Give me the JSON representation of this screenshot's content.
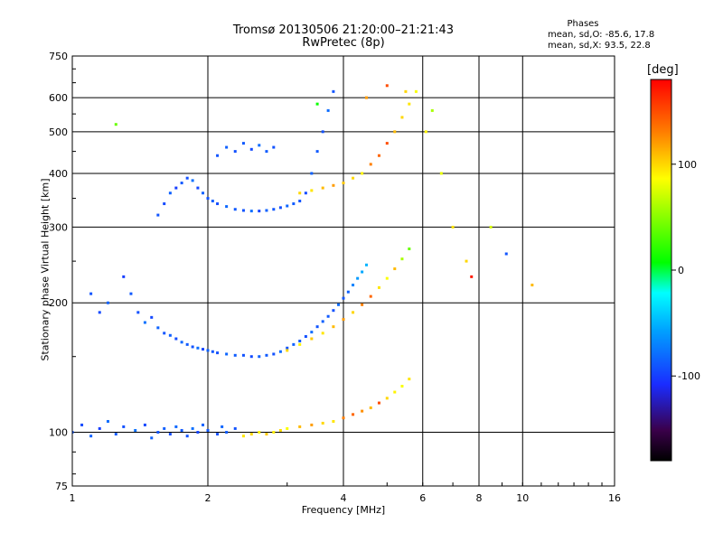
{
  "chart_data": {
    "type": "scatter",
    "title": "Tromsø 20130506 21:20:00–21:21:43",
    "subtitle": "RwPretec (8p)",
    "xlabel": "Frequency [MHz]",
    "ylabel": "Stationary phase Virtual Height [km]",
    "x_scale": "log",
    "y_scale": "log",
    "xlim": [
      1,
      16
    ],
    "ylim": [
      75,
      750
    ],
    "x_ticks": [
      1,
      2,
      4,
      6,
      8,
      10,
      16
    ],
    "x_tick_labels": [
      "1",
      "2",
      "4",
      "6",
      "8",
      "10",
      "16"
    ],
    "y_ticks": [
      75,
      100,
      200,
      300,
      400,
      500,
      600,
      750
    ],
    "y_tick_labels": [
      "75",
      "100",
      "200",
      "300",
      "400",
      "500",
      "600",
      "750"
    ],
    "grid": true,
    "colorbar": {
      "label": "[deg]",
      "range": [
        -180,
        180
      ],
      "ticks": [
        100,
        0,
        -100
      ],
      "tick_labels": [
        "100",
        "0",
        "-100"
      ]
    },
    "info": {
      "heading": "Phases",
      "line_o": "mean, sd,O: -85.6, 17.8",
      "line_x": "mean, sd,X:  93.5, 22.8"
    },
    "series": [
      {
        "x": [
          1.0,
          1.05,
          1.1,
          1.15,
          1.2,
          1.25,
          1.3,
          1.38,
          1.45,
          1.5,
          1.55,
          1.6,
          1.65,
          1.7,
          1.75,
          1.8,
          1.85,
          1.9,
          1.95,
          2.0,
          2.1,
          2.15,
          2.2,
          2.3
        ],
        "y": [
          100,
          104,
          98,
          102,
          106,
          99,
          103,
          101,
          104,
          97,
          100,
          102,
          99,
          103,
          101,
          98,
          102,
          100,
          104,
          101,
          99,
          103,
          100,
          102
        ],
        "phase": [
          -90,
          -95,
          -85,
          -100,
          -80,
          -88,
          -92,
          -78,
          -96,
          -84,
          -90,
          -86,
          -94,
          -82,
          -88,
          -91,
          -79,
          -97,
          -85,
          -89,
          -93,
          -83,
          -87,
          -91
        ]
      },
      {
        "x": [
          1.1,
          1.15,
          1.2,
          1.3,
          1.35,
          1.4,
          1.45,
          1.5,
          1.55,
          1.6,
          1.65,
          1.7,
          1.75,
          1.8,
          1.85,
          1.9,
          1.95,
          2.0,
          2.05,
          2.1,
          2.2,
          2.3,
          2.4,
          2.5,
          2.6,
          2.7,
          2.8,
          2.9,
          3.0,
          3.1,
          3.2,
          3.3,
          3.4,
          3.5,
          3.6,
          3.7,
          3.8,
          3.9,
          4.0,
          4.1,
          4.2,
          4.3,
          4.4,
          4.5
        ],
        "y": [
          210,
          190,
          200,
          230,
          210,
          190,
          180,
          185,
          175,
          170,
          168,
          165,
          162,
          160,
          158,
          157,
          156,
          155,
          154,
          153,
          152,
          151,
          151,
          150,
          150,
          151,
          152,
          154,
          157,
          160,
          163,
          167,
          171,
          176,
          181,
          186,
          192,
          198,
          205,
          212,
          220,
          228,
          236,
          245
        ],
        "phase": [
          -90,
          -95,
          -85,
          -100,
          -88,
          -92,
          -78,
          -96,
          -84,
          -90,
          -86,
          -94,
          -82,
          -88,
          -91,
          -79,
          -97,
          -85,
          -89,
          -93,
          -83,
          -87,
          -91,
          -95,
          -85,
          -88,
          -92,
          -80,
          -90,
          -85,
          -88,
          -92,
          -80,
          -90,
          -85,
          -88,
          -92,
          -80,
          -90,
          -85,
          -70,
          -60,
          -55,
          -50
        ]
      },
      {
        "x": [
          1.55,
          1.6,
          1.65,
          1.7,
          1.75,
          1.8,
          1.85,
          1.9,
          1.95,
          2.0,
          2.05,
          2.1,
          2.2,
          2.3,
          2.4,
          2.5,
          2.6,
          2.7,
          2.8,
          2.9,
          3.0,
          3.1,
          3.2,
          3.3,
          3.4,
          3.5,
          3.6,
          3.7,
          3.8
        ],
        "y": [
          320,
          340,
          360,
          370,
          380,
          390,
          385,
          370,
          360,
          350,
          345,
          340,
          335,
          330,
          328,
          327,
          327,
          328,
          330,
          333,
          336,
          340,
          345,
          360,
          400,
          450,
          500,
          560,
          620
        ],
        "phase": [
          -90,
          -95,
          -85,
          -100,
          -88,
          -92,
          -78,
          -96,
          -84,
          -90,
          -86,
          -94,
          -82,
          -88,
          -91,
          -79,
          -97,
          -85,
          -89,
          -93,
          -83,
          -87,
          -91,
          -95,
          -85,
          -88,
          -92,
          -80,
          -90
        ]
      },
      {
        "x": [
          2.1,
          2.2,
          2.3,
          2.4,
          2.5,
          2.6,
          2.7,
          2.8
        ],
        "y": [
          440,
          460,
          450,
          470,
          455,
          465,
          450,
          460
        ],
        "phase": [
          -90,
          -85,
          -92,
          -88,
          -95,
          -80,
          -87,
          -91
        ]
      },
      {
        "x": [
          2.4,
          2.5,
          2.6,
          2.7,
          2.8,
          2.9,
          3.0,
          3.2,
          3.4,
          3.6,
          3.8,
          4.0,
          4.2,
          4.4,
          4.6,
          4.8,
          5.0,
          5.2,
          5.4,
          5.6
        ],
        "y": [
          98,
          99,
          100,
          99,
          100,
          101,
          102,
          103,
          104,
          105,
          106,
          108,
          110,
          112,
          114,
          117,
          120,
          124,
          128,
          133
        ],
        "phase": [
          95,
          100,
          90,
          105,
          92,
          98,
          85,
          110,
          120,
          100,
          95,
          130,
          140,
          125,
          110,
          150,
          100,
          90,
          85,
          95
        ]
      },
      {
        "x": [
          3.0,
          3.2,
          3.4,
          3.6,
          3.8,
          4.0,
          4.2,
          4.4,
          4.6,
          4.8,
          5.0,
          5.2,
          5.4,
          5.6
        ],
        "y": [
          155,
          160,
          165,
          170,
          176,
          183,
          190,
          198,
          207,
          217,
          228,
          240,
          253,
          267
        ],
        "phase": [
          100,
          90,
          105,
          95,
          110,
          120,
          100,
          130,
          140,
          95,
          85,
          110,
          60,
          40
        ]
      },
      {
        "x": [
          3.2,
          3.4,
          3.6,
          3.8,
          4.0,
          4.2,
          4.4,
          4.6,
          4.8,
          5.0,
          5.2,
          5.4,
          5.6,
          5.8
        ],
        "y": [
          360,
          365,
          370,
          375,
          380,
          390,
          400,
          420,
          440,
          470,
          500,
          540,
          580,
          620
        ],
        "phase": [
          100,
          95,
          110,
          120,
          105,
          100,
          90,
          130,
          140,
          150,
          110,
          100,
          95,
          85
        ]
      },
      {
        "x": [
          1.25,
          3.5,
          4.5,
          5.0,
          5.5,
          6.1,
          6.3,
          6.6,
          7.0,
          7.5,
          7.7,
          8.5,
          9.2,
          10.5
        ],
        "y": [
          520,
          580,
          600,
          640,
          620,
          500,
          560,
          400,
          300,
          250,
          230,
          300,
          260,
          220
        ],
        "phase": [
          40,
          10,
          120,
          150,
          100,
          90,
          60,
          80,
          95,
          100,
          170,
          75,
          -90,
          110
        ]
      }
    ]
  }
}
